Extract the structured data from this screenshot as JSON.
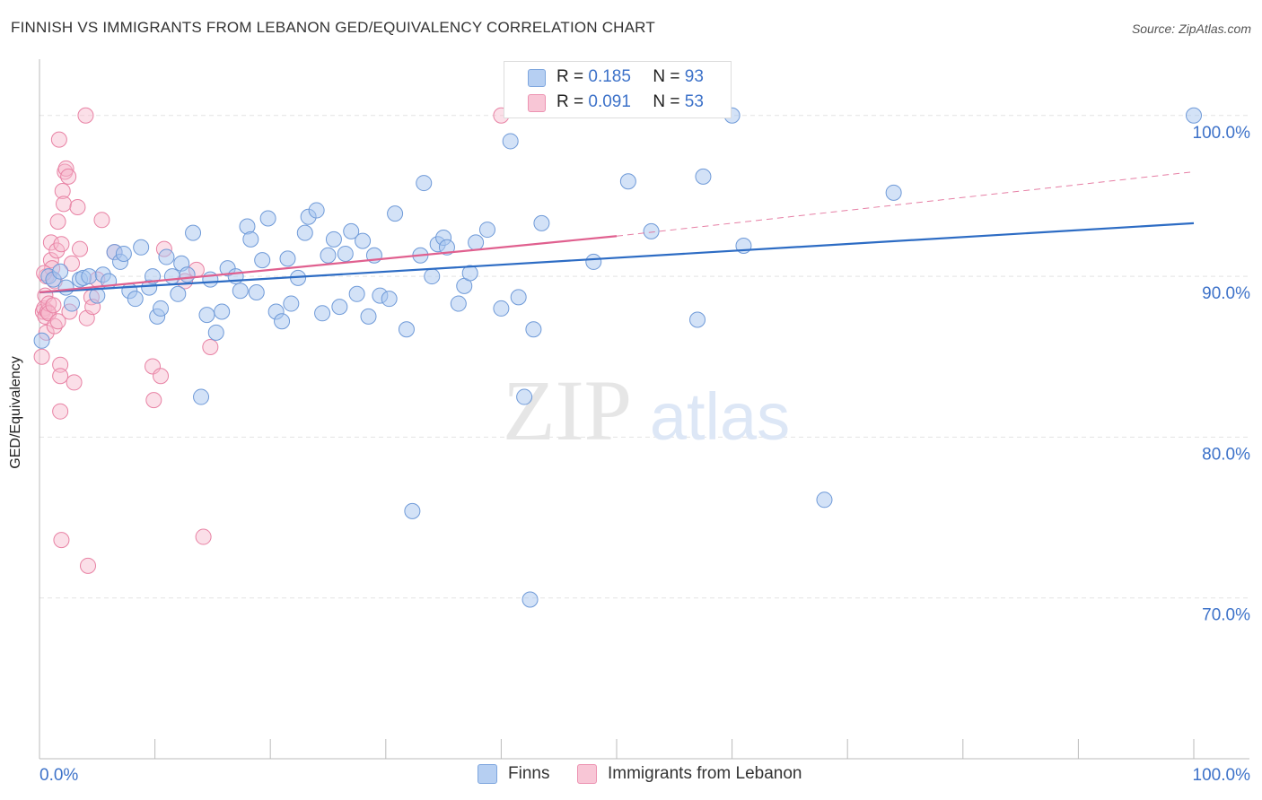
{
  "title": "FINNISH VS IMMIGRANTS FROM LEBANON GED/EQUIVALENCY CORRELATION CHART",
  "source": "Source: ZipAtlas.com",
  "watermark": {
    "zip": "ZIP",
    "atlas": "atlas"
  },
  "colors": {
    "finns_fill": "#a8c6f0",
    "finns_stroke": "#6f9ad8",
    "finns_line": "#2d6cc4",
    "leb_fill": "#f6b8cc",
    "leb_stroke": "#e882a4",
    "leb_line": "#e0608f",
    "value_blue": "#3d72c9",
    "grid": "#e3e3e3"
  },
  "legend": {
    "rows": [
      {
        "r_label": "R =",
        "r_value": "0.185",
        "n_label": "N =",
        "n_value": "93"
      },
      {
        "r_label": "R =",
        "r_value": "0.091",
        "n_label": "N =",
        "n_value": "53"
      }
    ]
  },
  "bottom_legend": {
    "finns": "Finns",
    "lebanon": "Immigrants from Lebanon"
  },
  "chart_data": {
    "type": "scatter",
    "xlabel": "",
    "ylabel": "GED/Equivalency",
    "xlim": [
      0,
      100
    ],
    "ylim": [
      60,
      103.5
    ],
    "x_ticks": [
      "0.0%",
      "100.0%"
    ],
    "y_ticks": [
      {
        "value": 100,
        "label": "100.0%"
      },
      {
        "value": 90,
        "label": "90.0%"
      },
      {
        "value": 80,
        "label": "80.0%"
      },
      {
        "value": 70,
        "label": "70.0%"
      }
    ],
    "series": [
      {
        "name": "Finns",
        "r": 0.185,
        "n": 93,
        "trend": {
          "x0": 0,
          "y0": 89.0,
          "x1": 100,
          "y1": 93.3
        },
        "points": [
          [
            0.2,
            86.0
          ],
          [
            0.8,
            90.0
          ],
          [
            1.2,
            89.8
          ],
          [
            1.8,
            90.3
          ],
          [
            2.3,
            89.3
          ],
          [
            2.8,
            88.3
          ],
          [
            3.5,
            89.8
          ],
          [
            3.8,
            89.9
          ],
          [
            4.3,
            90.0
          ],
          [
            5.0,
            88.8
          ],
          [
            5.5,
            90.1
          ],
          [
            6.0,
            89.7
          ],
          [
            6.5,
            91.5
          ],
          [
            7.0,
            90.9
          ],
          [
            7.3,
            91.4
          ],
          [
            7.8,
            89.1
          ],
          [
            8.3,
            88.6
          ],
          [
            8.8,
            91.8
          ],
          [
            9.5,
            89.3
          ],
          [
            9.8,
            90.0
          ],
          [
            10.2,
            87.5
          ],
          [
            10.5,
            88.0
          ],
          [
            11.0,
            91.2
          ],
          [
            11.5,
            90.0
          ],
          [
            12.0,
            88.9
          ],
          [
            12.3,
            90.8
          ],
          [
            12.8,
            90.1
          ],
          [
            13.3,
            92.7
          ],
          [
            14.0,
            82.5
          ],
          [
            14.5,
            87.6
          ],
          [
            14.8,
            89.8
          ],
          [
            15.3,
            86.5
          ],
          [
            15.8,
            87.8
          ],
          [
            16.3,
            90.5
          ],
          [
            17.0,
            90.0
          ],
          [
            17.4,
            89.1
          ],
          [
            18.0,
            93.1
          ],
          [
            18.3,
            92.3
          ],
          [
            18.8,
            89.0
          ],
          [
            19.3,
            91.0
          ],
          [
            19.8,
            93.6
          ],
          [
            20.5,
            87.8
          ],
          [
            21.0,
            87.2
          ],
          [
            21.5,
            91.1
          ],
          [
            21.8,
            88.3
          ],
          [
            22.4,
            89.9
          ],
          [
            23.0,
            92.7
          ],
          [
            23.3,
            93.7
          ],
          [
            24.0,
            94.1
          ],
          [
            24.5,
            87.7
          ],
          [
            25.0,
            91.3
          ],
          [
            25.5,
            92.3
          ],
          [
            26.0,
            88.1
          ],
          [
            26.5,
            91.4
          ],
          [
            27.0,
            92.8
          ],
          [
            27.5,
            88.9
          ],
          [
            28.0,
            92.2
          ],
          [
            28.5,
            87.5
          ],
          [
            29.0,
            91.3
          ],
          [
            29.5,
            88.8
          ],
          [
            30.3,
            88.6
          ],
          [
            30.8,
            93.9
          ],
          [
            31.8,
            86.7
          ],
          [
            32.3,
            75.4
          ],
          [
            33.0,
            91.3
          ],
          [
            33.3,
            95.8
          ],
          [
            34.0,
            90.0
          ],
          [
            34.5,
            92.0
          ],
          [
            35.0,
            92.4
          ],
          [
            35.3,
            91.8
          ],
          [
            36.3,
            88.3
          ],
          [
            36.8,
            89.4
          ],
          [
            37.3,
            90.2
          ],
          [
            37.8,
            92.1
          ],
          [
            38.8,
            92.9
          ],
          [
            40.0,
            88.0
          ],
          [
            40.8,
            98.4
          ],
          [
            41.5,
            88.7
          ],
          [
            42.0,
            82.5
          ],
          [
            42.5,
            69.9
          ],
          [
            42.8,
            86.7
          ],
          [
            43.5,
            93.3
          ],
          [
            48.0,
            90.9
          ],
          [
            51.0,
            95.9
          ],
          [
            53.0,
            92.8
          ],
          [
            57.0,
            87.3
          ],
          [
            57.5,
            96.2
          ],
          [
            60.0,
            100.0
          ],
          [
            61.0,
            91.9
          ],
          [
            68.0,
            76.1
          ],
          [
            74.0,
            95.2
          ],
          [
            100.0,
            100.0
          ]
        ]
      },
      {
        "name": "Immigrants from Lebanon",
        "r": 0.091,
        "n": 53,
        "trend": {
          "x0": 0,
          "y0": 89.0,
          "x1": 50,
          "y1": 92.5
        },
        "trend_extension": {
          "x0": 50,
          "y0": 92.5,
          "x1": 100,
          "y1": 96.5
        },
        "points": [
          [
            0.2,
            85.0
          ],
          [
            0.3,
            87.8
          ],
          [
            0.4,
            88.0
          ],
          [
            0.5,
            87.5
          ],
          [
            0.5,
            88.8
          ],
          [
            0.6,
            90.0
          ],
          [
            0.6,
            86.5
          ],
          [
            0.7,
            87.8
          ],
          [
            0.8,
            88.3
          ],
          [
            0.8,
            87.7
          ],
          [
            1.0,
            91.0
          ],
          [
            1.0,
            92.1
          ],
          [
            1.1,
            90.5
          ],
          [
            1.2,
            88.2
          ],
          [
            1.3,
            86.9
          ],
          [
            1.3,
            89.7
          ],
          [
            1.5,
            91.6
          ],
          [
            1.6,
            93.4
          ],
          [
            1.6,
            87.2
          ],
          [
            1.7,
            98.5
          ],
          [
            1.8,
            84.5
          ],
          [
            1.8,
            83.8
          ],
          [
            1.8,
            81.6
          ],
          [
            1.9,
            92.0
          ],
          [
            1.9,
            73.6
          ],
          [
            2.0,
            95.3
          ],
          [
            2.1,
            94.5
          ],
          [
            2.2,
            96.5
          ],
          [
            2.3,
            96.7
          ],
          [
            2.5,
            96.2
          ],
          [
            2.6,
            87.8
          ],
          [
            2.8,
            90.8
          ],
          [
            3.0,
            83.4
          ],
          [
            3.3,
            94.3
          ],
          [
            3.5,
            91.7
          ],
          [
            4.0,
            100.0
          ],
          [
            4.1,
            87.4
          ],
          [
            4.2,
            72.0
          ],
          [
            4.5,
            88.7
          ],
          [
            4.6,
            88.1
          ],
          [
            5.0,
            89.8
          ],
          [
            5.4,
            93.5
          ],
          [
            6.5,
            91.5
          ],
          [
            9.8,
            84.4
          ],
          [
            9.9,
            82.3
          ],
          [
            10.5,
            83.8
          ],
          [
            10.8,
            91.7
          ],
          [
            14.2,
            73.8
          ],
          [
            14.8,
            85.6
          ],
          [
            12.6,
            89.7
          ],
          [
            13.6,
            90.4
          ],
          [
            40.0,
            100.0
          ],
          [
            0.4,
            90.2
          ]
        ]
      }
    ]
  }
}
